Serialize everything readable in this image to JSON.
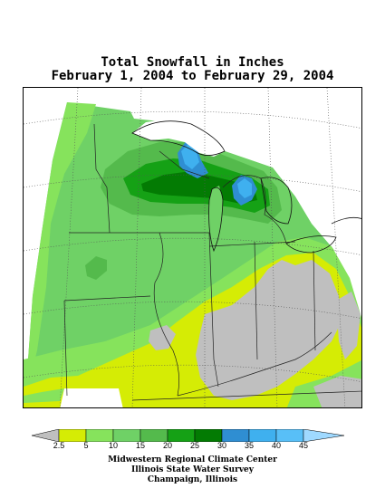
{
  "title": {
    "line1": "Total Snowfall in Inches",
    "line2": "February 1, 2004 to February 29, 2004"
  },
  "legend": {
    "unit": "inches",
    "ticks": [
      "2.5",
      "5",
      "10",
      "15",
      "20",
      "25",
      "30",
      "35",
      "40",
      "45"
    ],
    "colors": {
      "below_2_5": "#bfbfbf",
      "2_5_to_5": "#d5ec05",
      "5_to_10": "#86e35c",
      "10_to_15": "#6fd166",
      "15_to_20": "#54ba4c",
      "20_to_25": "#15a115",
      "25_to_30": "#037b03",
      "30_to_35": "#2f8ed2",
      "35_to_40": "#3fb0ef",
      "40_to_45": "#58bff7",
      "above_45": "#9fd9ff"
    }
  },
  "credits": {
    "line1": "Midwestern Regional Climate Center",
    "line2": "Illinois State Water Survey",
    "line3": "Champaign, Illinois"
  }
}
